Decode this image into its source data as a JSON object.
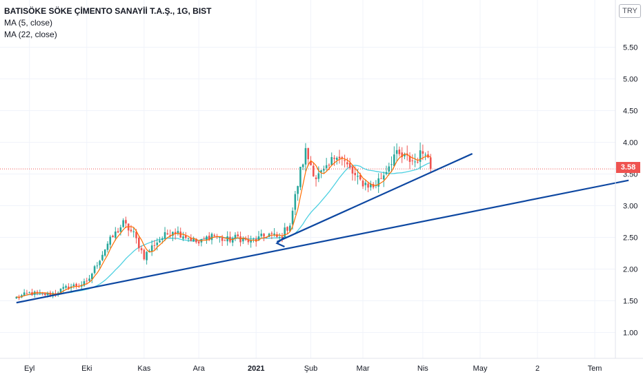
{
  "legend": {
    "title": "BATISÖKE SÖKE ÇİMENTO SANAYİİ T.A.Ş., 1G, BIST",
    "ma5": "MA (5, close)",
    "ma22": "MA (22, close)"
  },
  "currency": "TRY",
  "last_price": "3.58",
  "colors": {
    "up": "#26a69a",
    "down": "#ef5350",
    "ma5": "#ff6d00",
    "ma22": "#4dd0e1",
    "trendline": "#0d47a1",
    "last_price": "#ef5350"
  },
  "chart_data": {
    "type": "candlestick",
    "y_axis": {
      "ticks": [
        1.0,
        1.5,
        2.0,
        2.5,
        3.0,
        3.5,
        4.0,
        4.5,
        5.0,
        5.5
      ],
      "tick_labels": [
        "1.00",
        "1.50",
        "2.00",
        "2.50",
        "3.00",
        "3.50",
        "4.00",
        "4.50",
        "5.00",
        "5.50"
      ]
    },
    "x_axis": {
      "labels": [
        "Eyl",
        "Eki",
        "Kas",
        "Ara",
        "2021",
        "Şub",
        "Mar",
        "Nis",
        "May",
        "2",
        "Tem"
      ],
      "label_day_index": [
        0,
        22,
        44,
        65,
        87,
        108,
        128,
        151,
        173,
        195,
        217
      ],
      "label_bold": [
        false,
        false,
        false,
        false,
        true,
        false,
        false,
        false,
        false,
        false,
        false
      ]
    },
    "price_keypoints": [
      [
        -5,
        1.55
      ],
      [
        0,
        1.62
      ],
      [
        8,
        1.6
      ],
      [
        15,
        1.72
      ],
      [
        22,
        1.78
      ],
      [
        30,
        2.4
      ],
      [
        36,
        2.72
      ],
      [
        40,
        2.55
      ],
      [
        44,
        2.2
      ],
      [
        48,
        2.4
      ],
      [
        55,
        2.62
      ],
      [
        62,
        2.48
      ],
      [
        65,
        2.4
      ],
      [
        70,
        2.55
      ],
      [
        75,
        2.45
      ],
      [
        80,
        2.5
      ],
      [
        85,
        2.42
      ],
      [
        88,
        2.48
      ],
      [
        92,
        2.55
      ],
      [
        96,
        2.48
      ],
      [
        100,
        2.72
      ],
      [
        104,
        3.55
      ],
      [
        106,
        3.85
      ],
      [
        110,
        3.45
      ],
      [
        114,
        3.55
      ],
      [
        118,
        3.85
      ],
      [
        122,
        3.62
      ],
      [
        126,
        3.4
      ],
      [
        132,
        3.3
      ],
      [
        136,
        3.5
      ],
      [
        140,
        3.8
      ],
      [
        144,
        3.75
      ],
      [
        148,
        3.7
      ],
      [
        152,
        3.9
      ],
      [
        154,
        3.58
      ]
    ],
    "last_close": 3.58,
    "trendlines": [
      {
        "name": "long-trend",
        "start": [
          -5,
          1.47
        ],
        "end": [
          230,
          3.4
        ]
      },
      {
        "name": "short-trend",
        "start": [
          95,
          2.43
        ],
        "end": [
          170,
          3.82
        ]
      }
    ],
    "arrow_at": [
      95,
      2.43
    ]
  }
}
